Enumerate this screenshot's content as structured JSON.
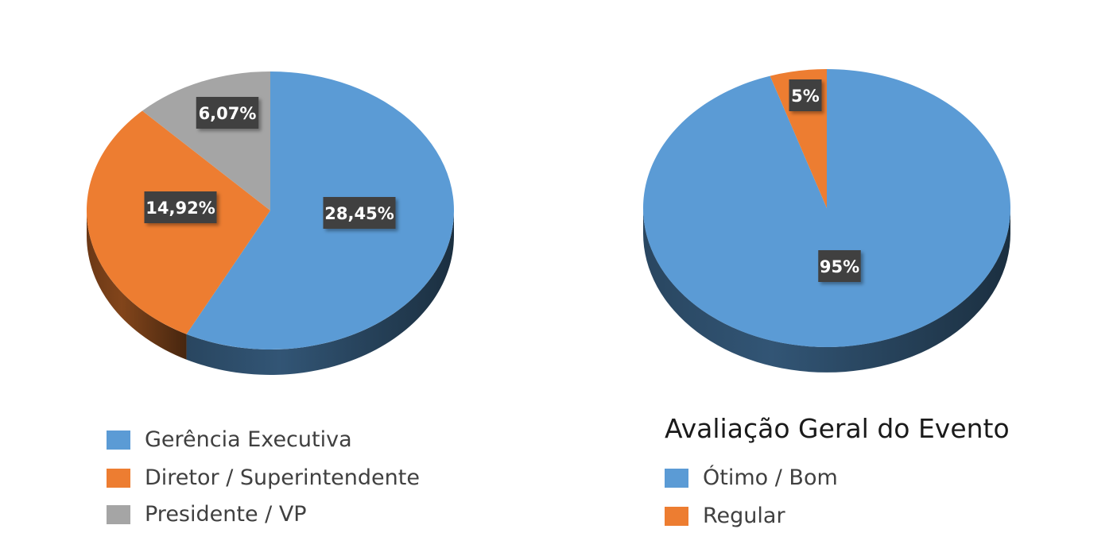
{
  "chart_data": [
    {
      "type": "pie",
      "title": "",
      "categories": [
        "Gerência Executiva",
        "Diretor / Superintendente",
        "Presidente / VP"
      ],
      "values": [
        28.45,
        14.92,
        6.07
      ],
      "data_labels": [
        "28,45%",
        "14,92%",
        "6,07%"
      ],
      "colors": [
        "#5b9bd5",
        "#ed7d31",
        "#a5a5a5"
      ],
      "legend_position": "bottom",
      "style": "3d"
    },
    {
      "type": "pie",
      "title": "Avaliação Geral do Evento",
      "categories": [
        "Ótimo / Bom",
        "Regular"
      ],
      "values": [
        95,
        5
      ],
      "data_labels": [
        "95%",
        "5%"
      ],
      "colors": [
        "#5b9bd5",
        "#ed7d31"
      ],
      "legend_position": "bottom",
      "style": "3d"
    }
  ]
}
